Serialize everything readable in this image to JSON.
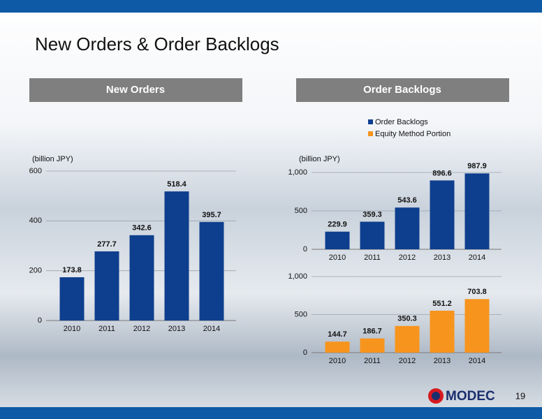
{
  "title": "New Orders & Order Backlogs",
  "page_number": "19",
  "logo": "MODEC",
  "chart_data": [
    {
      "type": "bar",
      "title": "New Orders",
      "y_label": "(billion JPY)",
      "categories": [
        "2010",
        "2011",
        "2012",
        "2013",
        "2014"
      ],
      "values": [
        173.8,
        277.7,
        342.6,
        518.4,
        395.7
      ],
      "color": "#0e3f8e",
      "ylim": [
        0,
        600
      ],
      "yticks": [
        0,
        200,
        400,
        600
      ],
      "grid": true
    },
    {
      "type": "bar",
      "title": "Order Backlogs",
      "y_label": "(billion JPY)",
      "categories": [
        "2010",
        "2011",
        "2012",
        "2013",
        "2014"
      ],
      "series": [
        {
          "name": "Order Backlogs",
          "color": "#0e3f8e",
          "values": [
            229.9,
            359.3,
            543.6,
            896.6,
            987.9
          ]
        }
      ],
      "ylim": [
        0,
        1000
      ],
      "yticks": [
        0,
        500,
        {
          "value": 1000,
          "label": "1,000"
        }
      ],
      "grid": true
    },
    {
      "type": "bar",
      "categories": [
        "2010",
        "2011",
        "2012",
        "2013",
        "2014"
      ],
      "series": [
        {
          "name": "Equity Method Portion",
          "color": "#f7941d",
          "values": [
            144.7,
            186.7,
            350.3,
            551.2,
            703.8
          ]
        }
      ],
      "ylim": [
        0,
        1000
      ],
      "yticks": [
        0,
        500,
        {
          "value": 1000,
          "label": "1,000"
        }
      ],
      "grid": true
    }
  ]
}
